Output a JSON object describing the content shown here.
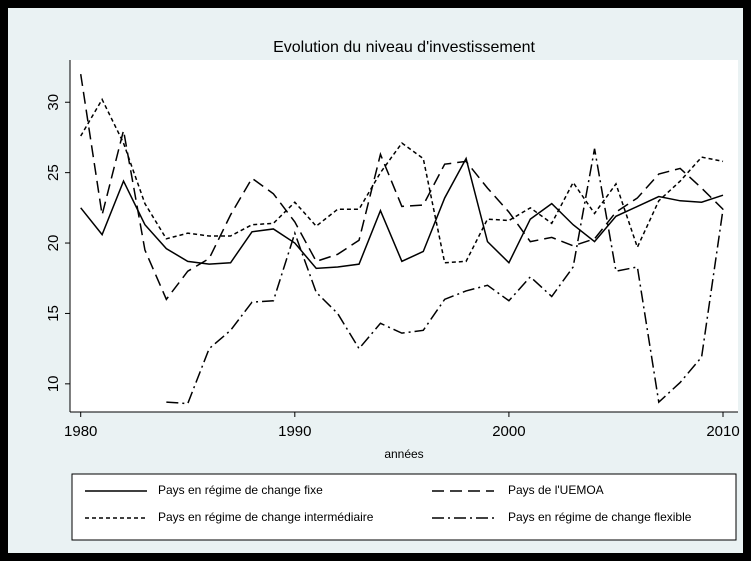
{
  "chart_data": {
    "type": "line",
    "title": "Evolution du niveau d'investissement",
    "x_label": "années",
    "x": [
      1980,
      1981,
      1982,
      1983,
      1984,
      1985,
      1986,
      1987,
      1988,
      1989,
      1990,
      1991,
      1992,
      1993,
      1994,
      1995,
      1996,
      1997,
      1998,
      1999,
      2000,
      2001,
      2002,
      2003,
      2004,
      2005,
      2006,
      2007,
      2008,
      2009,
      2010
    ],
    "series": [
      {
        "name": "Pays en régime de change fixe",
        "color": "#000000",
        "dash": "solid",
        "values": [
          22.5,
          20.6,
          24.4,
          21.3,
          19.6,
          18.7,
          18.5,
          18.6,
          20.8,
          21.0,
          20.0,
          18.2,
          18.3,
          18.5,
          22.3,
          18.7,
          19.4,
          23.2,
          26.0,
          20.1,
          18.6,
          21.7,
          22.8,
          21.3,
          20.1,
          21.9,
          22.6,
          23.3,
          23.0,
          22.9,
          23.4
        ]
      },
      {
        "name": "Pays de l'UEMOA",
        "color": "#000000",
        "dash": "long",
        "values": [
          32.0,
          22.0,
          28.0,
          19.5,
          16.0,
          18.0,
          18.9,
          22.0,
          24.6,
          23.5,
          21.5,
          18.7,
          19.2,
          20.2,
          26.3,
          22.6,
          22.7,
          25.6,
          25.8,
          23.9,
          22.2,
          20.1,
          20.4,
          19.8,
          20.3,
          22.2,
          23.2,
          24.9,
          25.3,
          23.9,
          22.4
        ]
      },
      {
        "name": "Pays en régime de change intermédiaire",
        "color": "#000000",
        "dash": "short",
        "values": [
          27.6,
          30.2,
          27.1,
          22.8,
          20.3,
          20.7,
          20.5,
          20.5,
          21.3,
          21.4,
          22.9,
          21.2,
          22.4,
          22.4,
          25.0,
          27.1,
          26.0,
          18.6,
          18.7,
          21.7,
          21.6,
          22.5,
          21.4,
          24.3,
          22.1,
          24.2,
          19.7,
          23.0,
          24.4,
          26.1,
          25.8
        ]
      },
      {
        "name": "Pays en régime de change flexible",
        "color": "#000000",
        "dash": "dashdot",
        "values": [
          null,
          null,
          null,
          null,
          8.7,
          8.6,
          12.5,
          13.8,
          15.8,
          15.9,
          20.7,
          16.5,
          15.0,
          12.5,
          14.3,
          13.6,
          13.8,
          16.0,
          16.6,
          17.0,
          15.9,
          17.6,
          16.2,
          18.3,
          26.7,
          18.0,
          18.3,
          8.7,
          10.1,
          11.9,
          22.4
        ]
      }
    ],
    "xlim": [
      1979.5,
      2010.7
    ],
    "xticks": [
      1980,
      1990,
      2000,
      2010
    ],
    "ylim": [
      8,
      33
    ],
    "yticks": [
      10,
      15,
      20,
      25,
      30
    ],
    "grid": false,
    "legend": "bottom"
  }
}
